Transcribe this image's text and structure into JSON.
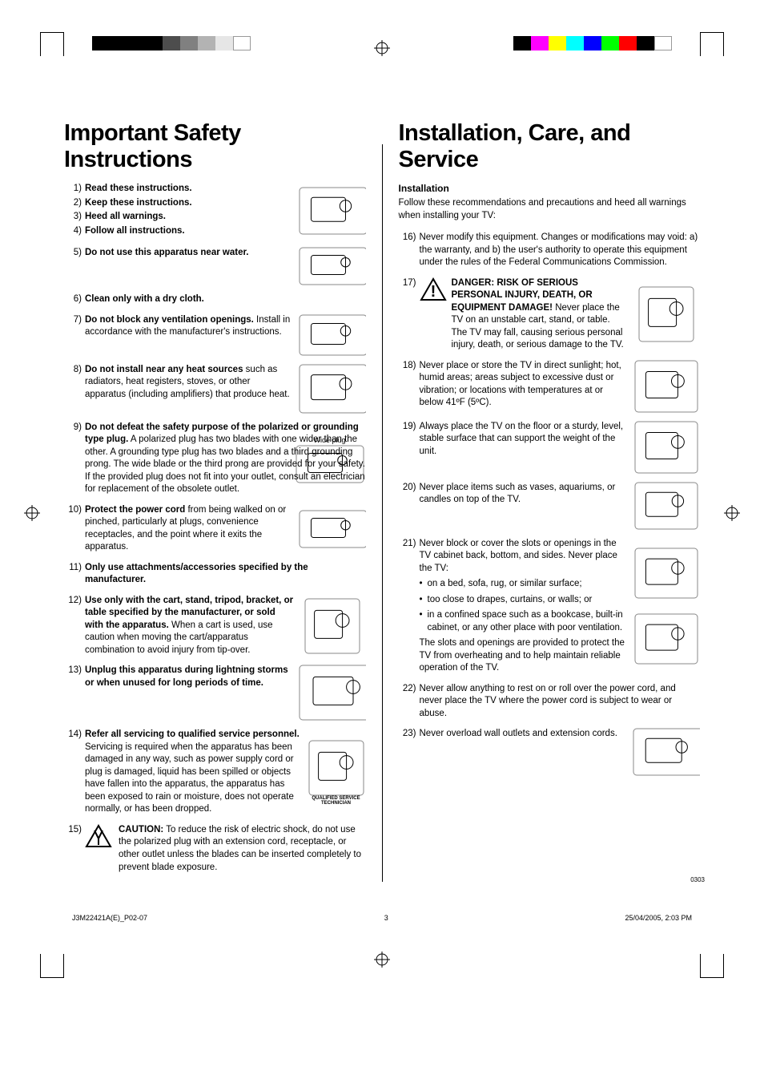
{
  "registration_colors_left": [
    "#000000",
    "#000000",
    "#000000",
    "#000000",
    "#4d4d4d",
    "#808080",
    "#b3b3b3",
    "#e6e6e6",
    "#ffffff"
  ],
  "registration_colors_right": [
    "#000000",
    "#ff00ff",
    "#ffff00",
    "#00ffff",
    "#0000ff",
    "#00ff00",
    "#ff0000",
    "#000000",
    "#ffffff"
  ],
  "left": {
    "heading": "Important Safety Instructions",
    "items": [
      {
        "n": "1)",
        "bold": "Read these instructions.",
        "rest": ""
      },
      {
        "n": "2)",
        "bold": "Keep these instructions.",
        "rest": ""
      },
      {
        "n": "3)",
        "bold": "Heed all warnings.",
        "rest": ""
      },
      {
        "n": "4)",
        "bold": "Follow all instructions.",
        "rest": ""
      },
      {
        "n": "5)",
        "bold": "Do not use this apparatus near water.",
        "rest": ""
      },
      {
        "n": "6)",
        "bold": "Clean only with a dry cloth.",
        "rest": ""
      },
      {
        "n": "7)",
        "bold": "Do not block any ventilation openings.",
        "rest": " Install in accordance with the manufacturer's instructions."
      },
      {
        "n": "8)",
        "bold": "Do not install near any heat sources",
        "rest": " such as radiators, heat registers, stoves, or other apparatus (including amplifiers) that produce heat."
      },
      {
        "n": "9)",
        "bold": "Do not defeat the safety purpose of the polarized or grounding type plug.",
        "rest": " A polarized plug has two blades with one wider than the other. A grounding type plug has two blades and a third grounding prong. The wide blade or the third prong are provided for your safety. If the provided plug does not fit into your outlet, consult an electrician for replacement of the obsolete outlet.",
        "label": "Wide plug"
      },
      {
        "n": "10)",
        "bold": "Protect the power cord",
        "rest": " from being walked on or pinched, particularly at plugs, convenience receptacles, and the point where it exits the apparatus."
      },
      {
        "n": "11)",
        "bold": "Only use attachments/accessories specified by the manufacturer.",
        "rest": ""
      },
      {
        "n": "12)",
        "bold": "Use only with the cart, stand, tripod, bracket, or table specified by the manufacturer, or sold with the apparatus.",
        "rest": " When a cart is used, use caution when moving the cart/apparatus combination to avoid injury from tip-over."
      },
      {
        "n": "13)",
        "bold": "Unplug this apparatus during lightning storms or when unused for long periods of time.",
        "rest": ""
      },
      {
        "n": "14)",
        "bold": "Refer all servicing to qualified service personnel.",
        "rest": " Servicing is required when the apparatus has been damaged in any way, such as power supply cord or plug is damaged, liquid has been spilled or objects have fallen into the apparatus, the apparatus has been exposed to rain or moisture, does not operate normally, or has been dropped.",
        "label": "QUALIFIED SERVICE TECHNICIAN"
      },
      {
        "n": "15)",
        "bold": "CAUTION:",
        "rest": " To reduce the risk of electric shock, do not use the polarized plug with an extension cord, receptacle, or other outlet unless the blades can be inserted completely to prevent blade exposure."
      }
    ]
  },
  "right": {
    "heading": "Installation, Care, and Service",
    "sub": "Installation",
    "intro": "Follow these recommendations and precautions and heed all warnings when installing your TV:",
    "items": [
      {
        "n": "16)",
        "text": "Never modify this equipment. Changes or modifications may void: a) the warranty, and b) the user's authority to operate this equipment under the rules of the Federal Communications Commission."
      },
      {
        "n": "17)",
        "bold": "DANGER: RISK OF SERIOUS PERSONAL INJURY, DEATH, OR EQUIPMENT DAMAGE!",
        "text": " Never place the TV on an unstable cart, stand, or table. The TV may fall, causing serious personal injury, death, or serious damage to the TV."
      },
      {
        "n": "18)",
        "text": "Never place or store the TV in direct sunlight; hot, humid areas; areas subject to excessive dust or vibration; or locations with temperatures at or below 41ºF (5ºC)."
      },
      {
        "n": "19)",
        "text": "Always place the TV on the floor or a sturdy, level, stable surface that can support the weight of the unit."
      },
      {
        "n": "20)",
        "text": "Never place items such as vases, aquariums, or candles on top of the TV."
      },
      {
        "n": "21)",
        "text": "Never block or cover the slots or openings in the TV cabinet back, bottom, and sides. Never place the TV:",
        "bullets": [
          "on a bed, sofa, rug, or similar surface;",
          "too close to drapes, curtains, or walls; or",
          "in a confined space such as a bookcase, built-in cabinet, or any other place with poor ventilation."
        ],
        "after": "The slots and openings are provided to protect the TV from overheating and to help maintain reliable operation of the TV."
      },
      {
        "n": "22)",
        "text": "Never allow anything to rest on or roll over the power cord, and never place the TV where the power cord is subject to wear or abuse."
      },
      {
        "n": "23)",
        "text": "Never overload wall outlets and extension cords."
      }
    ],
    "code": "0303"
  },
  "footer": {
    "left": "J3M22421A(E)_P02-07",
    "page": "3",
    "right": "25/04/2005, 2:03 PM"
  }
}
